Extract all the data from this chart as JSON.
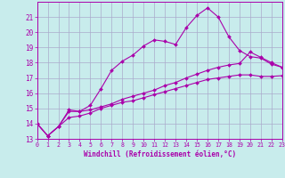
{
  "xlabel": "Windchill (Refroidissement éolien,°C)",
  "bg_color": "#c8ecec",
  "line_color": "#aa00aa",
  "grid_color": "#aaaacc",
  "xlim": [
    0,
    23
  ],
  "ylim": [
    13,
    22
  ],
  "yticks": [
    13,
    14,
    15,
    16,
    17,
    18,
    19,
    20,
    21
  ],
  "xticks": [
    0,
    1,
    2,
    3,
    4,
    5,
    6,
    7,
    8,
    9,
    10,
    11,
    12,
    13,
    14,
    15,
    16,
    17,
    18,
    19,
    20,
    21,
    22,
    23
  ],
  "series1_x": [
    0,
    1,
    2,
    3,
    4,
    5,
    6,
    7,
    8,
    9,
    10,
    11,
    12,
    13,
    14,
    15,
    16,
    17,
    18,
    19,
    20,
    21,
    22,
    23
  ],
  "series1_y": [
    14.0,
    13.2,
    13.8,
    14.8,
    14.8,
    15.2,
    16.3,
    17.5,
    18.1,
    18.5,
    19.1,
    19.5,
    19.4,
    19.2,
    20.3,
    21.1,
    21.6,
    21.0,
    19.7,
    18.8,
    18.4,
    18.3,
    17.9,
    17.7
  ],
  "series2_x": [
    0,
    1,
    2,
    3,
    4,
    5,
    6,
    7,
    8,
    9,
    10,
    11,
    12,
    13,
    14,
    15,
    16,
    17,
    18,
    19,
    20,
    21,
    22,
    23
  ],
  "series2_y": [
    14.0,
    13.2,
    13.8,
    14.9,
    14.8,
    14.9,
    15.1,
    15.3,
    15.6,
    15.8,
    16.0,
    16.2,
    16.5,
    16.7,
    17.0,
    17.25,
    17.5,
    17.7,
    17.85,
    17.95,
    18.7,
    18.35,
    18.0,
    17.7
  ],
  "series3_x": [
    0,
    1,
    2,
    3,
    4,
    5,
    6,
    7,
    8,
    9,
    10,
    11,
    12,
    13,
    14,
    15,
    16,
    17,
    18,
    19,
    20,
    21,
    22,
    23
  ],
  "series3_y": [
    14.0,
    13.2,
    13.8,
    14.4,
    14.5,
    14.7,
    15.0,
    15.2,
    15.4,
    15.5,
    15.7,
    15.9,
    16.1,
    16.3,
    16.5,
    16.7,
    16.9,
    17.0,
    17.1,
    17.2,
    17.2,
    17.1,
    17.1,
    17.15
  ]
}
